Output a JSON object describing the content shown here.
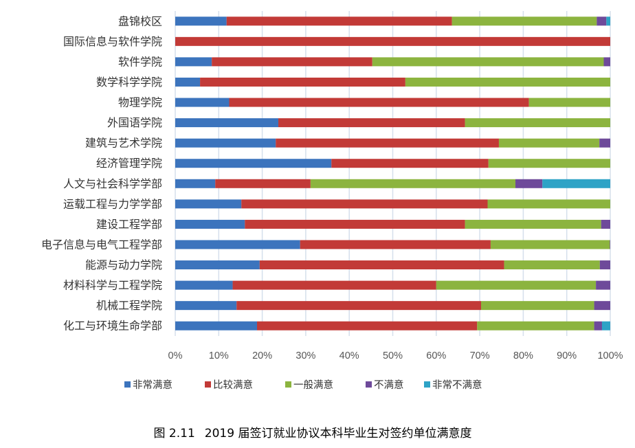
{
  "chart_data": {
    "type": "bar",
    "orientation": "horizontal",
    "stacked": "percent",
    "categories": [
      "盘锦校区",
      "国际信息与软件学院",
      "软件学院",
      "数学科学学院",
      "物理学院",
      "外国语学院",
      "建筑与艺术学院",
      "经济管理学院",
      "人文与社会科学学部",
      "运载工程与力学学部",
      "建设工程学部",
      "电子信息与电气工程学部",
      "能源与动力学院",
      "材料科学与工程学院",
      "机械工程学院",
      "化工与环境生命学部"
    ],
    "series": [
      {
        "name": "非常满意",
        "color": "#3c74bd",
        "values": [
          11.8,
          0,
          8.4,
          5.7,
          12.4,
          23.7,
          23.1,
          35.9,
          9.2,
          15.2,
          16.0,
          28.7,
          19.4,
          13.2,
          14.1,
          18.8
        ]
      },
      {
        "name": "比较满意",
        "color": "#c23a37",
        "values": [
          51.8,
          100,
          36.9,
          47.2,
          68.9,
          42.9,
          51.3,
          36.1,
          21.9,
          56.6,
          50.6,
          43.8,
          56.2,
          46.8,
          56.2,
          50.6
        ]
      },
      {
        "name": "一般满意",
        "color": "#8cb43f",
        "values": [
          33.3,
          0,
          53.2,
          47.1,
          18.7,
          33.4,
          23.1,
          28.0,
          47.1,
          28.2,
          31.3,
          27.4,
          22.0,
          36.7,
          26.0,
          26.9
        ]
      },
      {
        "name": "不满意",
        "color": "#6e4a9a",
        "values": [
          2.2,
          0,
          1.5,
          0,
          0,
          0,
          2.5,
          0,
          6.2,
          0,
          2.1,
          0.1,
          2.4,
          3.3,
          3.7,
          1.8
        ]
      },
      {
        "name": "非常不满意",
        "color": "#2ea3c6",
        "values": [
          0.9,
          0,
          0,
          0,
          0,
          0,
          0,
          0,
          15.6,
          0,
          0,
          0,
          0,
          0,
          0,
          1.9
        ]
      }
    ],
    "xlim": [
      0,
      100
    ],
    "xticks": [
      "0%",
      "10%",
      "20%",
      "30%",
      "40%",
      "50%",
      "60%",
      "70%",
      "80%",
      "90%",
      "100%"
    ],
    "grid": "vertical",
    "legend": "bottom",
    "title": "",
    "xlabel": "",
    "ylabel": ""
  },
  "caption": {
    "label": "图 2.11",
    "text": "2019 届签订就业协议本科毕业生对签约单位满意度"
  }
}
